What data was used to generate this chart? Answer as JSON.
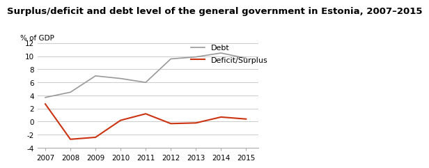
{
  "title": "Surplus/deficit and debt level of the general government in Estonia, 2007–2015",
  "ylabel": "% of GDP",
  "years": [
    2007,
    2008,
    2009,
    2010,
    2011,
    2012,
    2013,
    2014,
    2015
  ],
  "debt": [
    3.7,
    4.5,
    7.0,
    6.6,
    6.0,
    9.6,
    9.9,
    10.5,
    9.7
  ],
  "deficit": [
    2.7,
    -2.7,
    -2.4,
    0.2,
    1.2,
    -0.3,
    -0.2,
    0.7,
    0.4
  ],
  "debt_color": "#999999",
  "deficit_color": "#cc3311",
  "debt_label": "Debt",
  "deficit_label": "Deficit/Surplus",
  "ylim": [
    -4,
    12
  ],
  "yticks": [
    -4,
    -2,
    0,
    2,
    4,
    6,
    8,
    10,
    12
  ],
  "background_color": "#ffffff",
  "grid_color": "#cccccc",
  "title_fontsize": 9.5,
  "axis_fontsize": 7.5,
  "legend_fontsize": 8
}
